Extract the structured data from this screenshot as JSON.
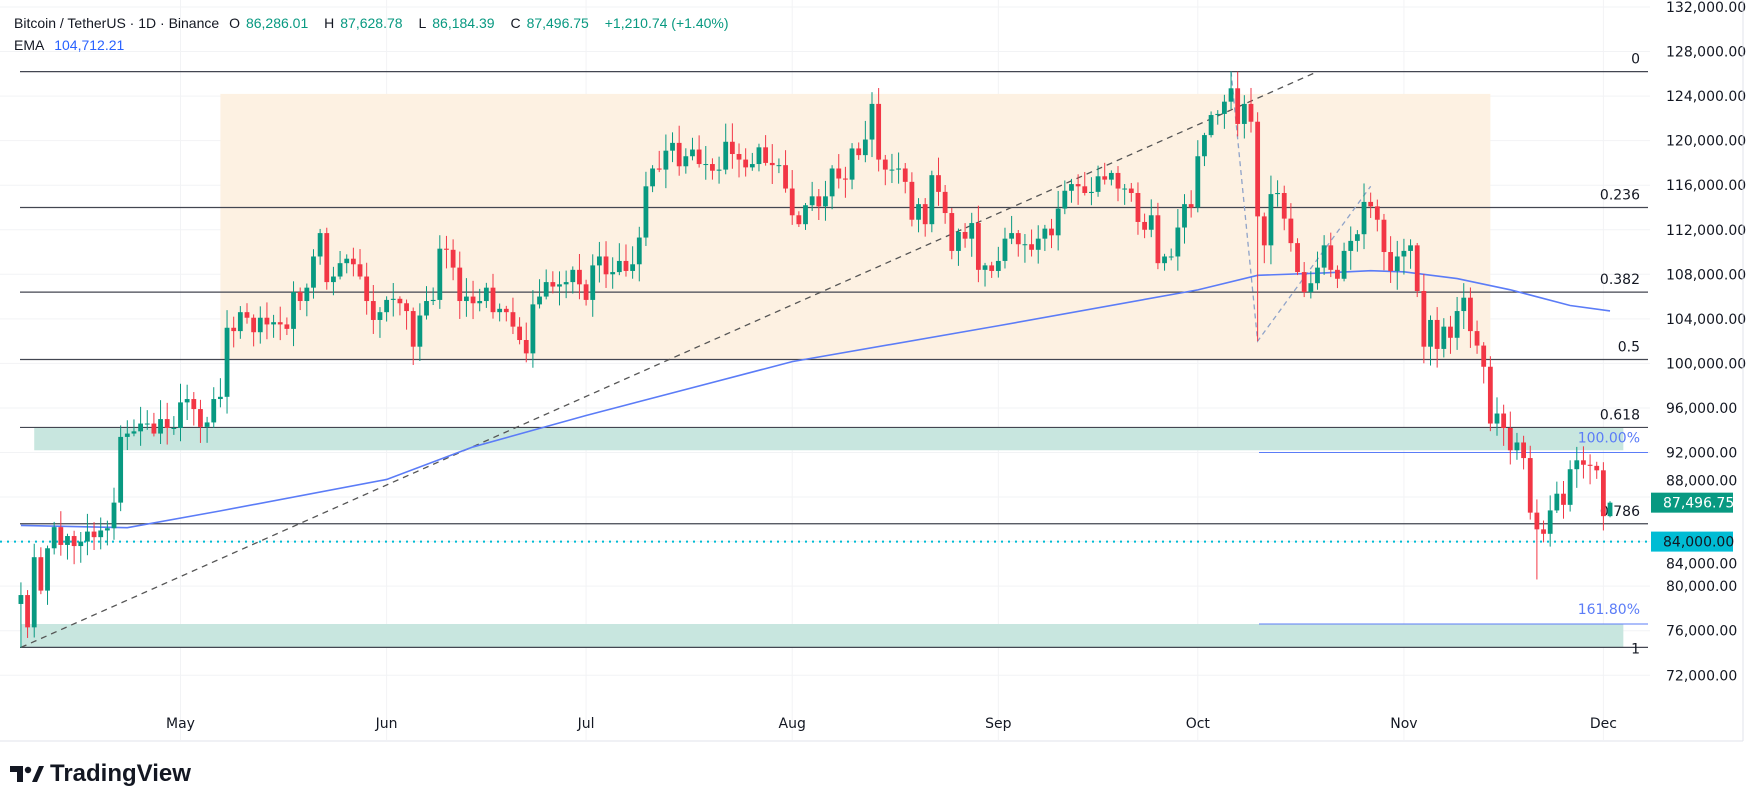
{
  "header": {
    "symbol": "Bitcoin / TetherUS · 1D · Binance",
    "open_label": "O",
    "open": "86,286.01",
    "high_label": "H",
    "high": "87,628.78",
    "low_label": "L",
    "low": "86,184.39",
    "close_label": "C",
    "close": "87,496.75",
    "change": "+1,210.74 (+1.40%)",
    "ema_label": "EMA",
    "ema_value": "104,712.21"
  },
  "branding": {
    "logo_text": "TradingView"
  },
  "colors": {
    "up": "#089981",
    "down": "#f23645",
    "ema": "#5b7cf7",
    "fib_box": "#fdf1e2",
    "zone": "#c8e6df",
    "price_tag": "#089981",
    "level_tag": "#00bcd4"
  },
  "chart_data": {
    "type": "candlestick",
    "title": "Bitcoin / TetherUS · 1D · Binance",
    "ylim": [
      70000,
      132000
    ],
    "y_ticks": [
      "132,000.00",
      "128,000.00",
      "124,000.00",
      "120,000.00",
      "116,000.00",
      "112,000.00",
      "108,000.00",
      "104,000.00",
      "100,000.00",
      "96,000.00",
      "92,000.00",
      "88,000.00",
      "84,000.00",
      "80,000.00",
      "76,000.00",
      "72,000.00"
    ],
    "x_ticks": [
      "May",
      "Jun",
      "Jul",
      "Aug",
      "Sep",
      "Oct",
      "Nov",
      "Dec"
    ],
    "daily_closes_by_month": {
      "Apr": [
        null,
        null,
        null,
        null,
        null,
        null,
        79200,
        76300,
        82600,
        79600,
        83400,
        85300,
        83700,
        84500,
        83600,
        84000,
        84900,
        84400,
        85000,
        85200,
        87500,
        93400,
        93700,
        93900,
        94600,
        94600,
        93700,
        95000,
        94200,
        94200
      ],
      "May": [
        96500,
        96800,
        95900,
        94300,
        94700,
        96800,
        97000,
        103200,
        102900,
        104600,
        104100,
        102800,
        104100,
        103500,
        103700,
        103500,
        103100,
        106400,
        105600,
        106800,
        109600,
        111700,
        107300,
        107800,
        109000,
        109400,
        108900,
        107800,
        105600,
        103900,
        104600
      ],
      "Jun": [
        105700,
        105800,
        105400,
        104700,
        101500,
        104300,
        105600,
        105700,
        110300,
        110200,
        108600,
        105600,
        106000,
        105400,
        105600,
        106800,
        104600,
        104900,
        104600,
        103300,
        102100,
        100900,
        105300,
        106000,
        107300,
        106900,
        107100,
        107300,
        108400,
        107100
      ],
      "Jul": [
        105700,
        108800,
        109600,
        108000,
        108200,
        109200,
        108300,
        108900,
        111300,
        115900,
        117500,
        117400,
        119100,
        119800,
        117700,
        118600,
        119200,
        117900,
        117900,
        117300,
        117400,
        119900,
        118800,
        118300,
        117600,
        117900,
        119400,
        118000,
        117800,
        117800,
        115700
      ],
      "Aug": [
        113300,
        112500,
        114200,
        115000,
        114100,
        115000,
        117500,
        116600,
        116500,
        119300,
        118700,
        120100,
        123300,
        118300,
        117400,
        117400,
        117500,
        116300,
        112900,
        114300,
        112500,
        116900,
        115400,
        113500,
        110100,
        111800,
        111200,
        112600,
        108400,
        108800,
        108300
      ],
      "Sep": [
        109200,
        111200,
        111700,
        110700,
        110700,
        110200,
        111200,
        112100,
        111500,
        113900,
        115500,
        116100,
        115900,
        115300,
        115400,
        116800,
        116500,
        117100,
        115700,
        115700,
        115300,
        112700,
        112000,
        113300,
        109000,
        109600,
        109600,
        112200,
        114300,
        114000
      ],
      "Oct": [
        118600,
        120500,
        122300,
        122400,
        123500,
        124700,
        121500,
        123300,
        121700,
        113200,
        110600,
        115200,
        115300,
        113000,
        110800,
        108200,
        106400,
        107200,
        108600,
        110600,
        108400,
        107600,
        110100,
        111000,
        111600,
        114500,
        114100,
        112900,
        110000,
        108300,
        109600
      ],
      "Nov": [
        110100,
        110600,
        106500,
        101500,
        103900,
        101300,
        103300,
        102300,
        104700,
        105900,
        102900,
        101600,
        99700,
        94600,
        95500,
        94200,
        92200,
        92900,
        91500,
        86600,
        85100,
        84700,
        86800,
        88300,
        87300,
        90500,
        91300,
        90900,
        90800,
        90400
      ],
      "Dec": [
        86286.01,
        87496.75
      ]
    },
    "last_candle": {
      "open": 86286.01,
      "high": 87628.78,
      "low": 86184.39,
      "close": 87496.75,
      "change": 1210.74,
      "change_pct": 1.4
    },
    "ema": {
      "label": "EMA",
      "points": [
        [
          "Apr 7",
          85450
        ],
        [
          "Apr 23",
          85250
        ],
        [
          "May 7",
          86760
        ],
        [
          "Jun 1",
          89580
        ],
        [
          "Jun 14",
          92500
        ],
        [
          "Jul 1",
          95320
        ],
        [
          "Aug 1",
          100160
        ],
        [
          "Sep 1",
          103380
        ],
        [
          "Oct 1",
          106600
        ],
        [
          "Oct 10",
          107910
        ],
        [
          "Oct 20",
          108120
        ],
        [
          "Oct 27",
          108320
        ],
        [
          "Nov 1",
          108220
        ],
        [
          "Nov 9",
          107620
        ],
        [
          "Nov 17",
          106610
        ],
        [
          "Nov 26",
          105200
        ],
        [
          "Dec 2",
          104712.21
        ]
      ]
    },
    "fib_retracement": {
      "levels": [
        {
          "label": "0",
          "price": 126200
        },
        {
          "label": "0.236",
          "price": 114000
        },
        {
          "label": "0.382",
          "price": 106400
        },
        {
          "label": "0.5",
          "price": 100350
        },
        {
          "label": "0.618",
          "price": 94250
        },
        {
          "label": "0.786",
          "price": 85600
        },
        {
          "label": "1",
          "price": 74500
        }
      ]
    },
    "fib_extension": {
      "levels": [
        {
          "label": "100.00%",
          "price": 92000
        },
        {
          "label": "161.80%",
          "price": 76600
        }
      ]
    },
    "range_box": {
      "from": "May 7",
      "to": "Nov 14",
      "top": 124200,
      "bottom": 100350
    },
    "zones": [
      {
        "top": 94250,
        "bottom": 92200,
        "from": "Apr 9",
        "to": "Dec 4"
      },
      {
        "top": 76600,
        "bottom": 74500,
        "from": "Apr 7",
        "to": "Dec 4"
      }
    ],
    "trendline": {
      "from": [
        "Apr 7",
        74500
      ],
      "to": [
        "Oct 19",
        126200
      ]
    },
    "zigzag": [
      [
        "Oct 6",
        126200
      ],
      [
        "Oct 10",
        102000
      ],
      [
        "Oct 27",
        115900
      ]
    ],
    "horizontal_level": {
      "price": 84000,
      "label": "84,000.00"
    },
    "price_tag": {
      "price": 87496.75,
      "label": "87,496.75"
    }
  }
}
